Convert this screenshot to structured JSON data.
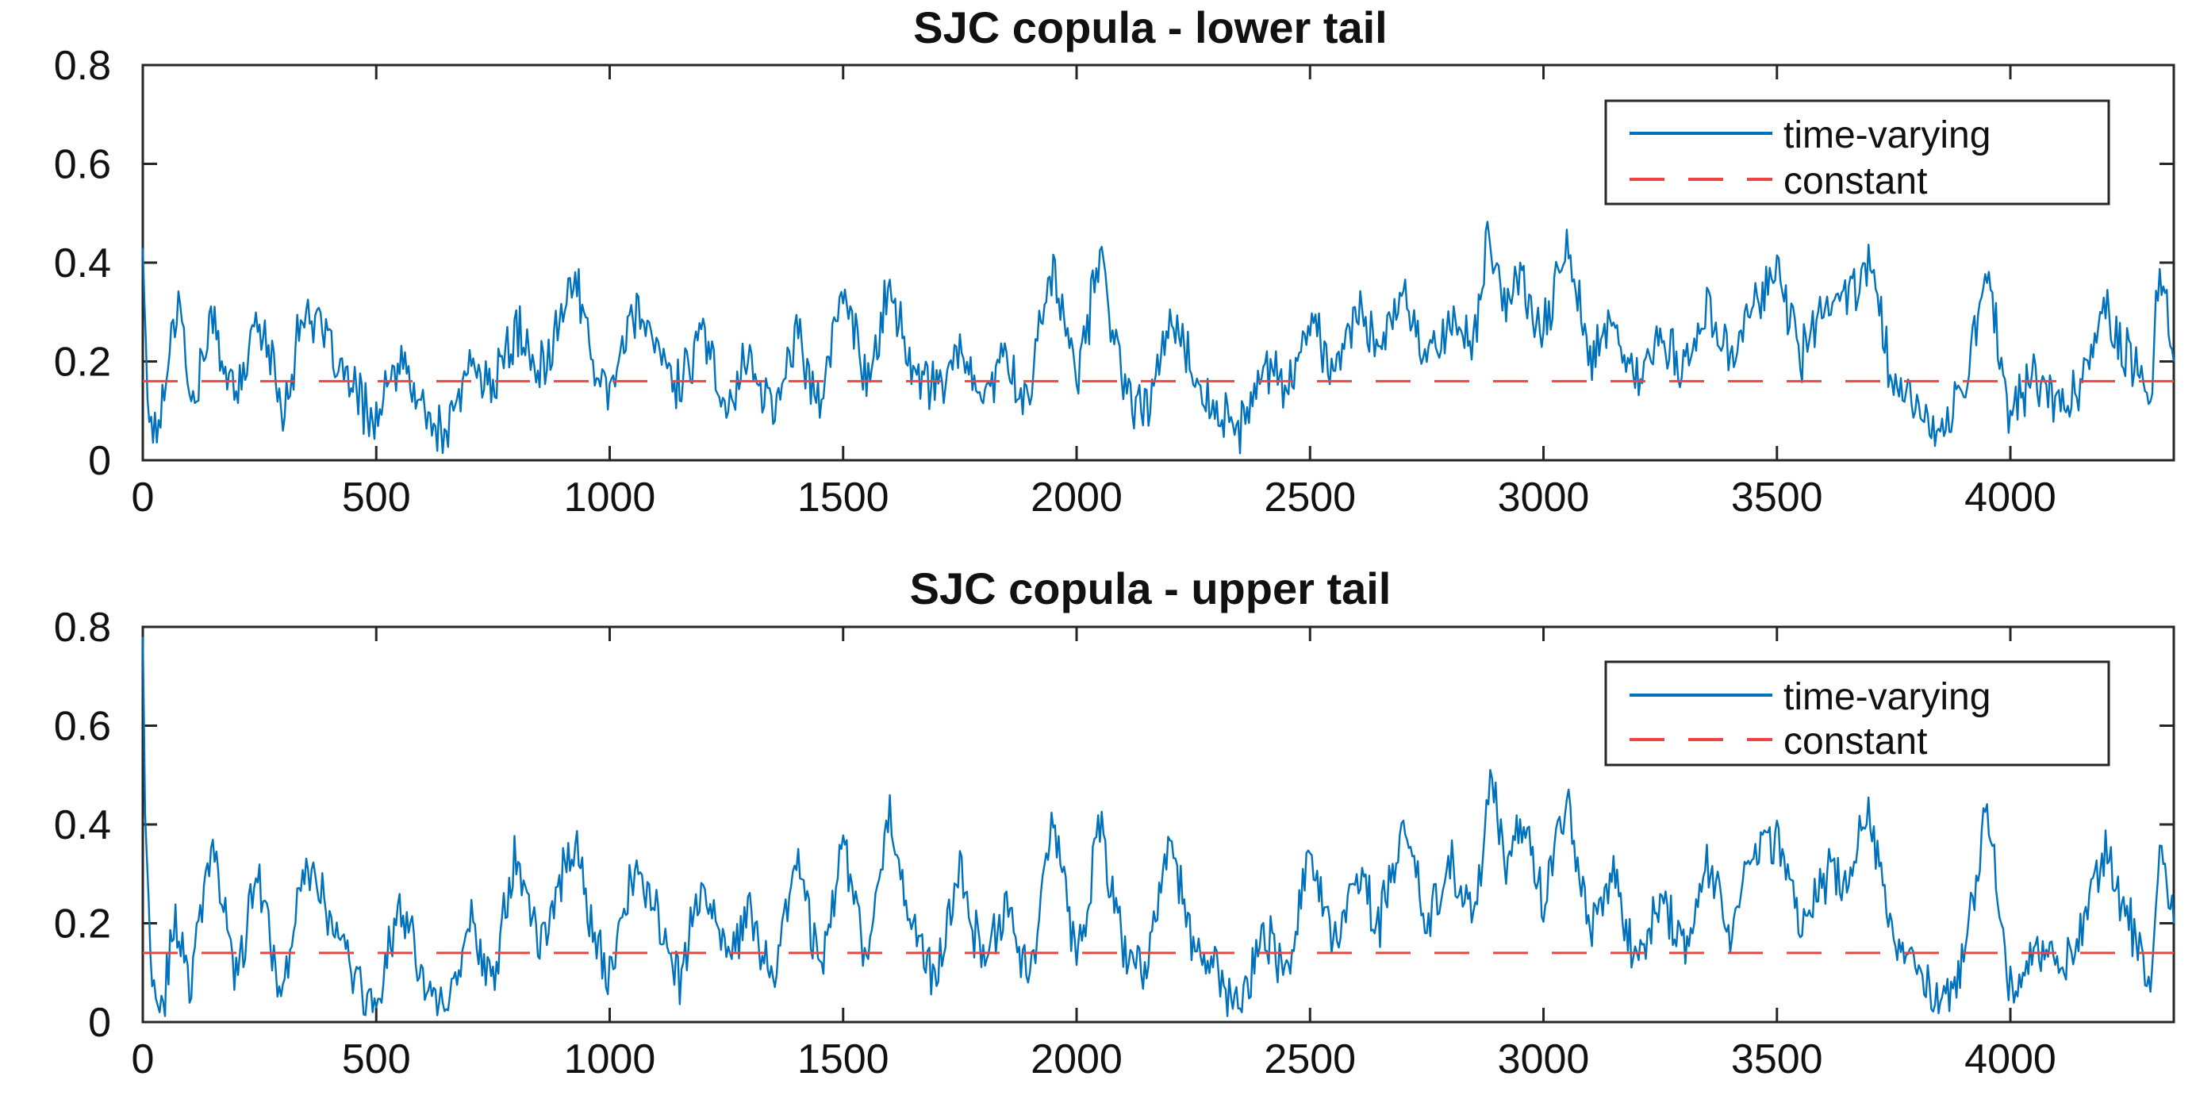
{
  "colors": {
    "time_varying": "#0072BD",
    "constant": "#EE4444",
    "axes": "#262626",
    "background": "#FFFFFF"
  },
  "chart_data": [
    {
      "type": "line",
      "title": "SJC copula - lower tail",
      "xlabel": "",
      "ylabel": "",
      "xlim": [
        0,
        4350
      ],
      "ylim": [
        0,
        0.8
      ],
      "xticks": [
        0,
        500,
        1000,
        1500,
        2000,
        2500,
        3000,
        3500,
        4000
      ],
      "yticks": [
        0,
        0.2,
        0.4,
        0.6,
        0.8
      ],
      "xtick_labels": [
        "0",
        "500",
        "1000",
        "1500",
        "2000",
        "2500",
        "3000",
        "3500",
        "4000"
      ],
      "ytick_labels": [
        "0",
        "0.2",
        "0.4",
        "0.6",
        "0.8"
      ],
      "grid": false,
      "legend_position": "top-right",
      "series": [
        {
          "name": "time-varying",
          "style": "solid",
          "x": [
            0,
            10,
            30,
            50,
            80,
            100,
            150,
            200,
            250,
            300,
            350,
            400,
            450,
            500,
            550,
            600,
            650,
            700,
            750,
            800,
            850,
            900,
            930,
            960,
            1000,
            1050,
            1100,
            1150,
            1200,
            1250,
            1300,
            1350,
            1400,
            1450,
            1500,
            1550,
            1600,
            1650,
            1700,
            1750,
            1800,
            1850,
            1900,
            1920,
            1950,
            2000,
            2050,
            2100,
            2150,
            2200,
            2250,
            2300,
            2350,
            2400,
            2450,
            2500,
            2550,
            2600,
            2650,
            2700,
            2750,
            2800,
            2850,
            2880,
            2920,
            2950,
            3000,
            3050,
            3100,
            3150,
            3200,
            3250,
            3300,
            3350,
            3400,
            3450,
            3500,
            3550,
            3600,
            3650,
            3700,
            3750,
            3800,
            3850,
            3900,
            3950,
            4000,
            4050,
            4100,
            4150,
            4200,
            4250,
            4300,
            4320,
            4350
          ],
          "y": [
            0.44,
            0.12,
            0.05,
            0.18,
            0.36,
            0.1,
            0.28,
            0.12,
            0.3,
            0.1,
            0.32,
            0.22,
            0.14,
            0.08,
            0.2,
            0.1,
            0.04,
            0.2,
            0.15,
            0.26,
            0.18,
            0.3,
            0.38,
            0.2,
            0.15,
            0.3,
            0.22,
            0.15,
            0.25,
            0.12,
            0.2,
            0.1,
            0.25,
            0.12,
            0.35,
            0.15,
            0.36,
            0.18,
            0.14,
            0.22,
            0.12,
            0.2,
            0.1,
            0.28,
            0.4,
            0.15,
            0.42,
            0.14,
            0.1,
            0.3,
            0.18,
            0.1,
            0.05,
            0.2,
            0.15,
            0.28,
            0.18,
            0.3,
            0.22,
            0.34,
            0.2,
            0.3,
            0.22,
            0.47,
            0.3,
            0.38,
            0.25,
            0.45,
            0.2,
            0.28,
            0.15,
            0.25,
            0.18,
            0.3,
            0.2,
            0.32,
            0.38,
            0.2,
            0.3,
            0.32,
            0.4,
            0.15,
            0.1,
            0.05,
            0.15,
            0.4,
            0.08,
            0.18,
            0.1,
            0.16,
            0.3,
            0.22,
            0.12,
            0.4,
            0.2
          ]
        },
        {
          "name": "constant",
          "style": "dashed",
          "x": [
            0,
            4350
          ],
          "y": [
            0.16,
            0.16
          ]
        }
      ]
    },
    {
      "type": "line",
      "title": "SJC copula - upper tail",
      "xlabel": "",
      "ylabel": "",
      "xlim": [
        0,
        4350
      ],
      "ylim": [
        0,
        0.8
      ],
      "xticks": [
        0,
        500,
        1000,
        1500,
        2000,
        2500,
        3000,
        3500,
        4000
      ],
      "yticks": [
        0,
        0.2,
        0.4,
        0.6,
        0.8
      ],
      "xtick_labels": [
        "0",
        "500",
        "1000",
        "1500",
        "2000",
        "2500",
        "3000",
        "3500",
        "4000"
      ],
      "ytick_labels": [
        "0",
        "0.2",
        "0.4",
        "0.6",
        "0.8"
      ],
      "grid": false,
      "legend_position": "top-right",
      "series": [
        {
          "name": "time-varying",
          "style": "solid",
          "x": [
            0,
            5,
            20,
            40,
            70,
            100,
            150,
            200,
            250,
            300,
            350,
            400,
            450,
            500,
            550,
            600,
            650,
            700,
            750,
            800,
            850,
            900,
            930,
            960,
            1000,
            1050,
            1100,
            1150,
            1200,
            1250,
            1300,
            1350,
            1400,
            1450,
            1500,
            1550,
            1600,
            1650,
            1700,
            1750,
            1800,
            1850,
            1900,
            1920,
            1950,
            2000,
            2050,
            2100,
            2150,
            2200,
            2250,
            2300,
            2350,
            2400,
            2450,
            2500,
            2550,
            2600,
            2650,
            2700,
            2750,
            2800,
            2850,
            2890,
            2920,
            2950,
            3000,
            3050,
            3100,
            3150,
            3200,
            3250,
            3300,
            3350,
            3400,
            3450,
            3500,
            3550,
            3600,
            3650,
            3700,
            3750,
            3800,
            3850,
            3900,
            3950,
            4000,
            4050,
            4100,
            4150,
            4200,
            4250,
            4300,
            4320,
            4350
          ],
          "y": [
            0.78,
            0.45,
            0.05,
            0.02,
            0.2,
            0.08,
            0.35,
            0.1,
            0.3,
            0.05,
            0.35,
            0.2,
            0.1,
            0.02,
            0.25,
            0.08,
            0.02,
            0.2,
            0.1,
            0.36,
            0.15,
            0.3,
            0.38,
            0.18,
            0.1,
            0.3,
            0.22,
            0.1,
            0.28,
            0.12,
            0.22,
            0.08,
            0.35,
            0.1,
            0.38,
            0.12,
            0.43,
            0.18,
            0.1,
            0.3,
            0.12,
            0.25,
            0.08,
            0.25,
            0.42,
            0.12,
            0.4,
            0.14,
            0.1,
            0.38,
            0.15,
            0.1,
            0.02,
            0.2,
            0.1,
            0.35,
            0.15,
            0.3,
            0.2,
            0.4,
            0.2,
            0.32,
            0.2,
            0.51,
            0.3,
            0.4,
            0.25,
            0.44,
            0.18,
            0.3,
            0.12,
            0.25,
            0.15,
            0.32,
            0.18,
            0.35,
            0.38,
            0.2,
            0.3,
            0.28,
            0.42,
            0.15,
            0.12,
            0.02,
            0.12,
            0.42,
            0.05,
            0.15,
            0.1,
            0.18,
            0.35,
            0.22,
            0.1,
            0.35,
            0.2
          ]
        },
        {
          "name": "constant",
          "style": "dashed",
          "x": [
            0,
            4350
          ],
          "y": [
            0.14,
            0.14
          ]
        }
      ]
    }
  ]
}
